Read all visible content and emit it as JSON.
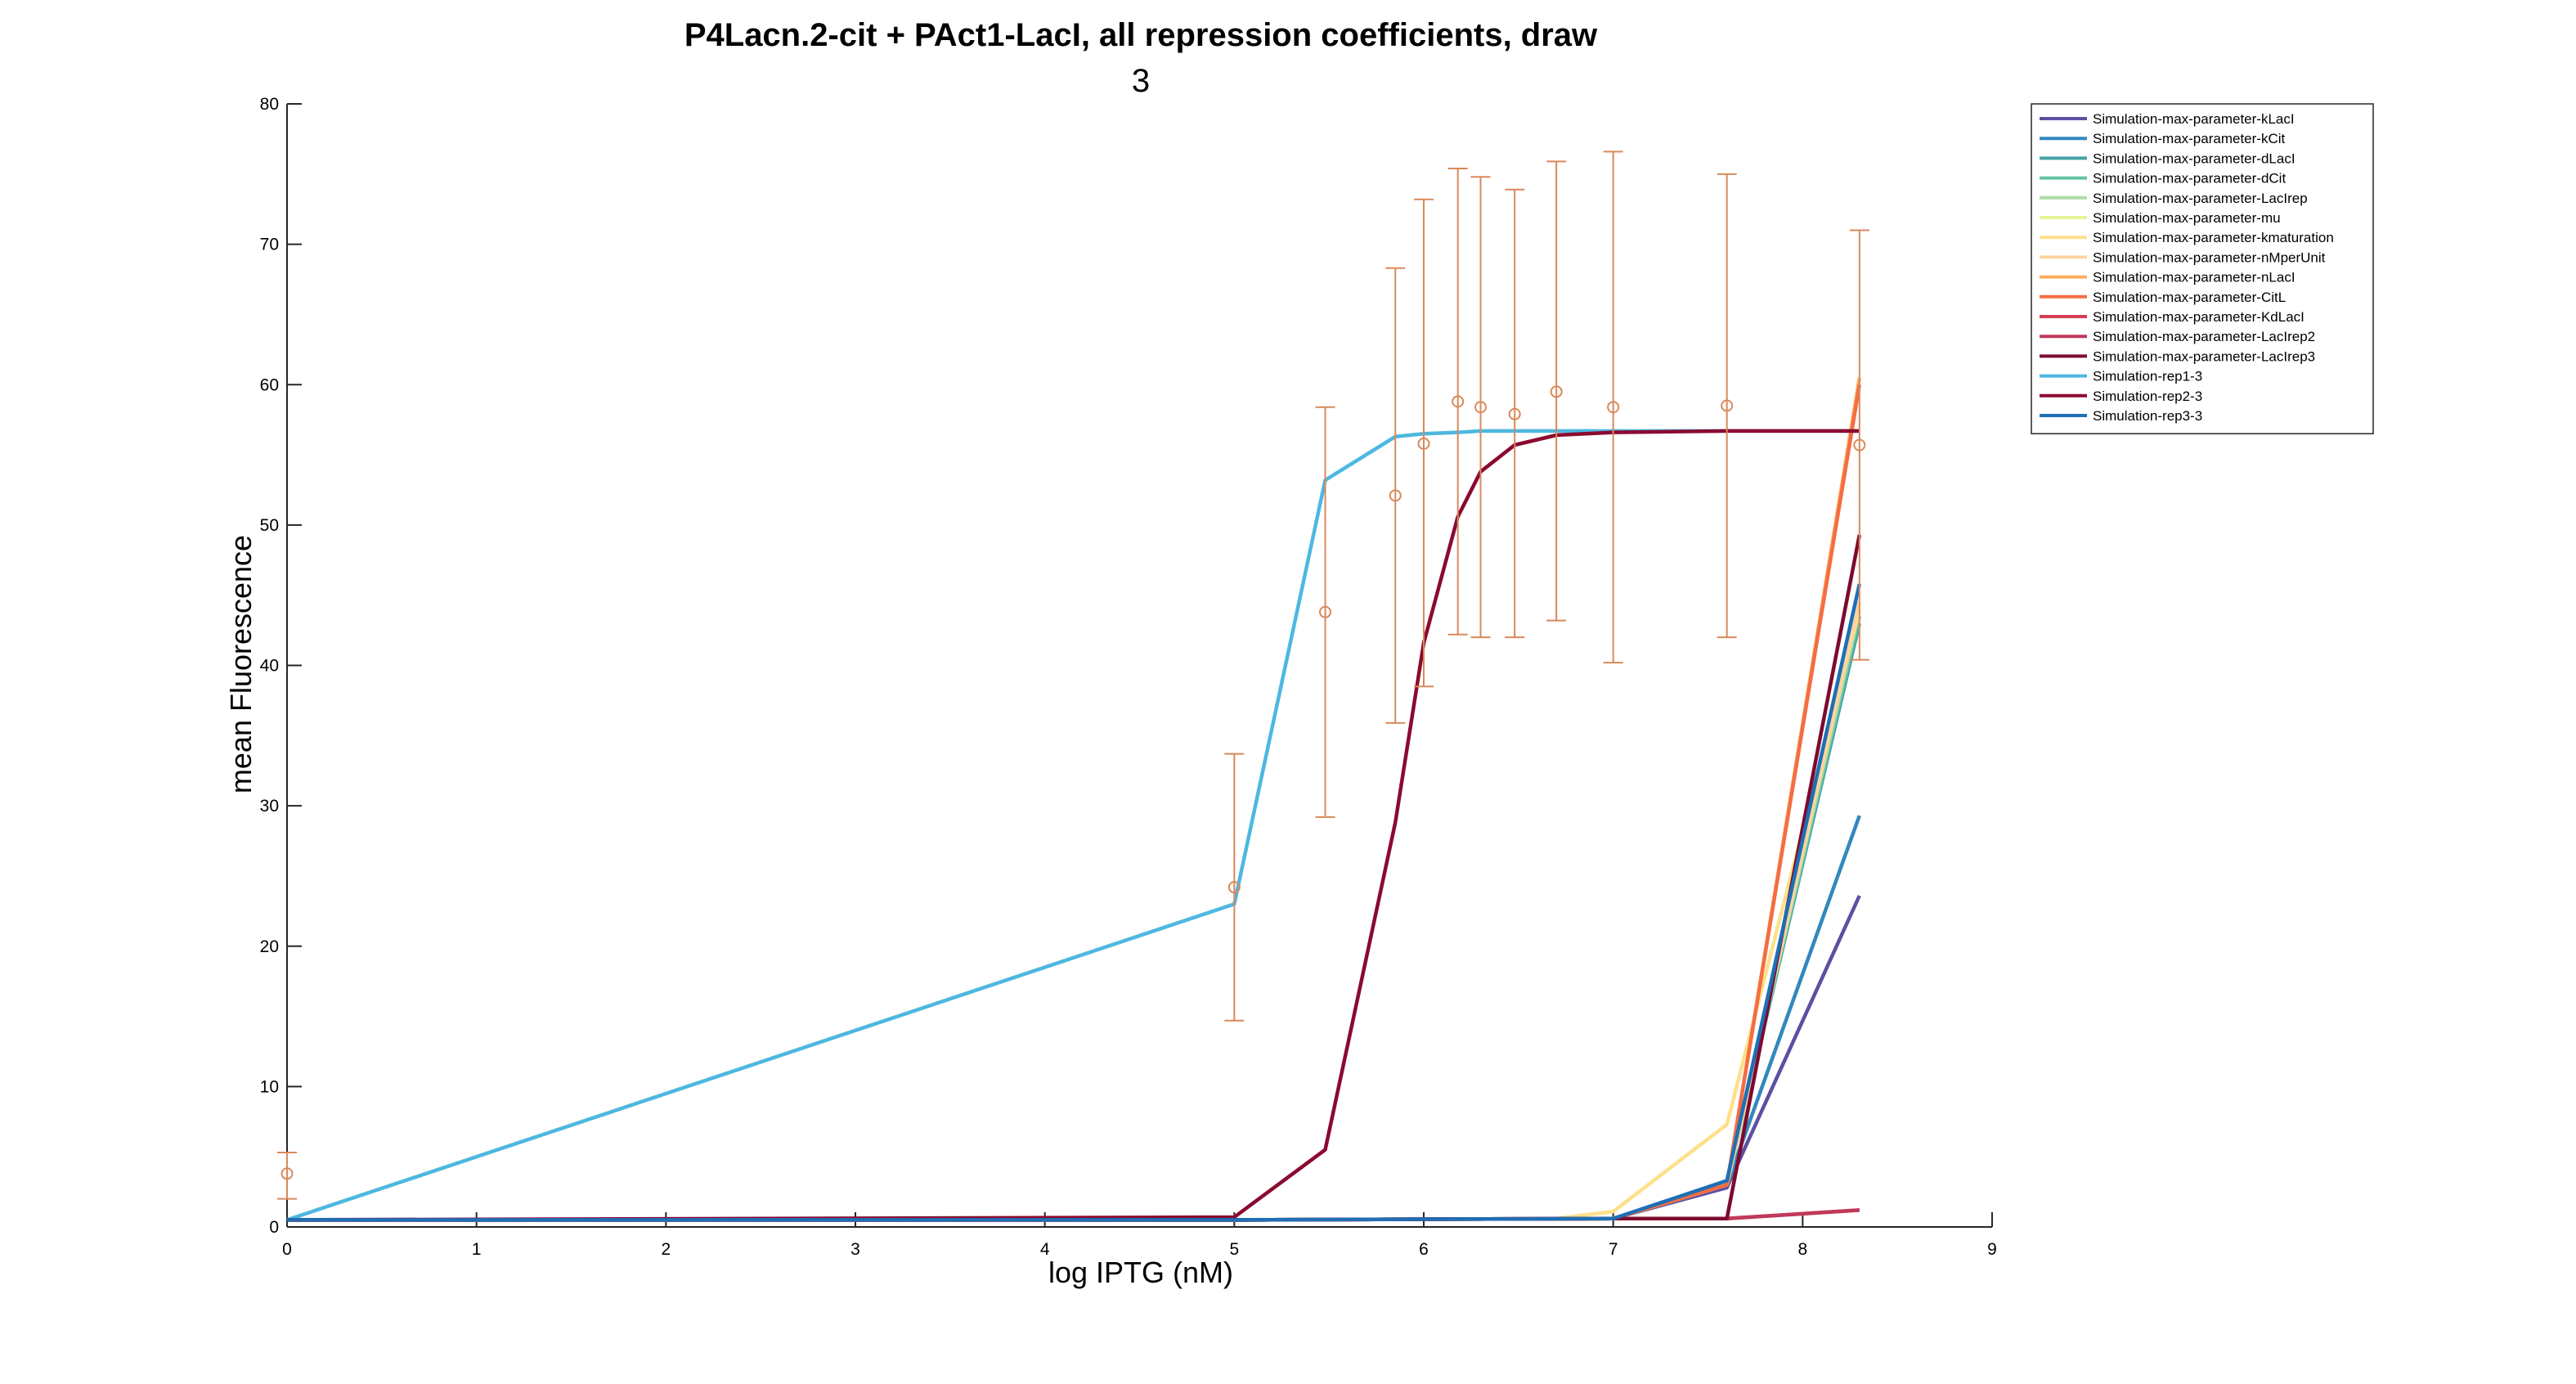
{
  "chart_data": {
    "type": "line",
    "title": "P4Lacn.2-cit + PAct1-LacI, all repression coefficients, draw",
    "title_line2": "3",
    "xlabel": "log IPTG (nM)",
    "ylabel": "mean Fluorescence",
    "xlim": [
      0,
      9
    ],
    "ylim": [
      0,
      80
    ],
    "xticks": [
      0,
      1,
      2,
      3,
      4,
      5,
      6,
      7,
      8,
      9
    ],
    "yticks": [
      0,
      10,
      20,
      30,
      40,
      50,
      60,
      70,
      80
    ],
    "grid": false,
    "legend_position": "top-right",
    "series": [
      {
        "name": "Simulation-max-parameter-kLacI",
        "color": "#5e4fa2",
        "x": [
          0,
          5,
          7,
          7.6,
          8.3
        ],
        "y": [
          0.5,
          0.5,
          0.6,
          2.8,
          23.6
        ]
      },
      {
        "name": "Simulation-max-parameter-kCit",
        "color": "#3288bd",
        "x": [
          0,
          5,
          7,
          7.6,
          8.3
        ],
        "y": [
          0.5,
          0.5,
          0.6,
          3.0,
          29.3
        ]
      },
      {
        "name": "Simulation-max-parameter-dLacI",
        "color": "#46a2a6",
        "x": [
          0,
          5,
          7,
          7.6,
          8.3
        ],
        "y": [
          0.5,
          0.5,
          0.6,
          3.0,
          43.0
        ]
      },
      {
        "name": "Simulation-max-parameter-dCit",
        "color": "#66c2a5",
        "x": [
          0,
          5,
          7,
          7.6,
          8.3
        ],
        "y": [
          0.5,
          0.5,
          0.6,
          3.0,
          43.5
        ]
      },
      {
        "name": "Simulation-max-parameter-LacIrep",
        "color": "#abdda4",
        "x": [
          0,
          5,
          7,
          7.6,
          8.3
        ],
        "y": [
          0.5,
          0.5,
          0.6,
          3.0,
          44.0
        ]
      },
      {
        "name": "Simulation-max-parameter-mu",
        "color": "#e6f598",
        "x": [
          0,
          5,
          7,
          7.6,
          8.3
        ],
        "y": [
          0.5,
          0.5,
          0.6,
          3.0,
          44.5
        ]
      },
      {
        "name": "Simulation-max-parameter-kmaturation",
        "color": "#fee08b",
        "x": [
          0,
          5,
          6.7,
          7,
          7.6,
          8.3
        ],
        "y": [
          0.5,
          0.5,
          0.6,
          1.1,
          7.3,
          44.0
        ]
      },
      {
        "name": "Simulation-max-parameter-nMperUnit",
        "color": "#fdd49e",
        "x": [
          0,
          5,
          7,
          7.6,
          8.3
        ],
        "y": [
          0.5,
          0.5,
          0.6,
          3.0,
          44.5
        ]
      },
      {
        "name": "Simulation-max-parameter-nLacI",
        "color": "#fdae61",
        "x": [
          0,
          5,
          7,
          7.6,
          8.3
        ],
        "y": [
          0.5,
          0.5,
          0.6,
          3.0,
          60.5
        ]
      },
      {
        "name": "Simulation-max-parameter-CitL",
        "color": "#f46d43",
        "x": [
          0,
          5,
          7,
          7.6,
          8.3
        ],
        "y": [
          0.5,
          0.5,
          0.6,
          3.0,
          60.0
        ]
      },
      {
        "name": "Simulation-max-parameter-KdLacI",
        "color": "#d53e4f",
        "x": [
          0,
          5,
          7,
          7.6,
          8.3
        ],
        "y": [
          0.5,
          0.5,
          0.6,
          0.6,
          1.2
        ]
      },
      {
        "name": "Simulation-max-parameter-LacIrep2",
        "color": "#c0395a",
        "x": [
          0,
          5,
          7,
          7.6,
          8.3
        ],
        "y": [
          0.5,
          0.5,
          0.6,
          0.6,
          1.2
        ]
      },
      {
        "name": "Simulation-max-parameter-LacIrep3",
        "color": "#7d0a2e",
        "x": [
          0,
          5,
          7,
          7.6,
          8.3
        ],
        "y": [
          0.5,
          0.5,
          0.6,
          0.6,
          49.3
        ]
      },
      {
        "name": "Simulation-rep1-3",
        "color": "#4db8e0",
        "x": [
          0,
          5,
          5.48,
          5.85,
          6,
          6.18,
          6.3,
          6.48,
          6.7,
          7,
          7.6,
          8.3
        ],
        "y": [
          0.5,
          23.0,
          53.2,
          56.3,
          56.5,
          56.6,
          56.7,
          56.7,
          56.7,
          56.7,
          56.7,
          56.7
        ]
      },
      {
        "name": "Simulation-rep2-3",
        "color": "#8b0a30",
        "x": [
          0,
          5,
          5.48,
          5.85,
          6,
          6.18,
          6.3,
          6.48,
          6.7,
          7,
          7.6,
          8.3
        ],
        "y": [
          0.5,
          0.7,
          5.5,
          28.8,
          41.6,
          50.6,
          53.8,
          55.7,
          56.4,
          56.6,
          56.7,
          56.7
        ]
      },
      {
        "name": "Simulation-rep3-3",
        "color": "#1e6fb5",
        "x": [
          0,
          5,
          7,
          7.6,
          8.3
        ],
        "y": [
          0.5,
          0.5,
          0.6,
          3.3,
          45.8
        ]
      }
    ],
    "errorbar_series": {
      "color": "#d9895b",
      "x": [
        0,
        5,
        5.48,
        5.85,
        6,
        6.18,
        6.3,
        6.48,
        6.7,
        7,
        7.6,
        8.3
      ],
      "y": [
        3.8,
        24.2,
        43.8,
        52.1,
        55.8,
        58.8,
        58.4,
        57.9,
        59.5,
        58.4,
        58.5,
        55.7
      ],
      "lower": [
        2.0,
        14.7,
        29.2,
        35.9,
        38.5,
        42.2,
        42.0,
        42.0,
        43.2,
        40.2,
        42.0,
        40.4
      ],
      "upper": [
        5.3,
        33.7,
        58.4,
        68.3,
        73.2,
        75.4,
        74.8,
        73.9,
        75.9,
        76.6,
        75.0,
        71.0
      ]
    }
  }
}
